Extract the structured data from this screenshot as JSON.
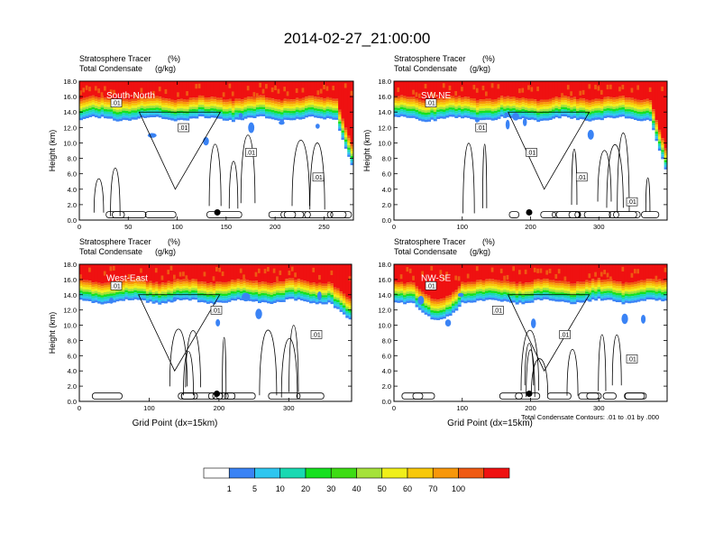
{
  "figure": {
    "title": "2014-02-27_21:00:00",
    "footnote": "Total Condensate Contours: .01 to .01 by .000"
  },
  "colorbar": {
    "colors": [
      "#ffffff",
      "#3a83f5",
      "#2ec6f0",
      "#19d9b2",
      "#16e020",
      "#3ddc14",
      "#a5e23a",
      "#f0ef1a",
      "#f8c80a",
      "#f8970a",
      "#ef5a12",
      "#ef1111"
    ],
    "labels": [
      "1",
      "5",
      "10",
      "20",
      "30",
      "40",
      "50",
      "60",
      "70",
      "100"
    ]
  },
  "chart_data": [
    {
      "type": "heatmap",
      "panel": "South-North",
      "annotation_left": "Stratosphere Tracer",
      "annotation_left_unit": "(%)",
      "annotation_left2": "Total Condensate",
      "annotation_left2_unit": "(g/kg)",
      "ylabel": "Height (km)",
      "xlabel": "",
      "xlim": [
        0,
        280
      ],
      "ylim": [
        0,
        18
      ],
      "xticks": [
        "0",
        "50",
        "100",
        "150",
        "200",
        "250"
      ],
      "yticks": [
        "0.0",
        "2.0",
        "4.0",
        "6.0",
        "8.0",
        "10.0",
        "12.0",
        "14.0",
        "16.0",
        "18.0"
      ],
      "marker_x": 141,
      "marker_y": 1.0,
      "contour_labels": [
        ".01",
        ".01",
        ".01",
        ".01"
      ]
    },
    {
      "type": "heatmap",
      "panel": "SW-NE",
      "annotation_left": "Stratosphere Tracer",
      "annotation_left_unit": "(%)",
      "annotation_left2": "Total Condensate",
      "annotation_left2_unit": "(g/kg)",
      "ylabel": "Height (km)",
      "xlabel": "",
      "xlim": [
        0,
        400
      ],
      "ylim": [
        0,
        18
      ],
      "xticks": [
        "0",
        "100",
        "200",
        "300"
      ],
      "yticks": [
        "0.0",
        "2.0",
        "4.0",
        "6.0",
        "8.0",
        "10.0",
        "12.0",
        "14.0",
        "16.0",
        "18.0"
      ],
      "marker_x": 198,
      "marker_y": 1.0,
      "contour_labels": [
        ".01",
        ".01",
        ".01",
        ".01",
        ".01"
      ]
    },
    {
      "type": "heatmap",
      "panel": "West-East",
      "annotation_left": "Stratosphere Tracer",
      "annotation_left_unit": "(%)",
      "annotation_left2": "Total Condensate",
      "annotation_left2_unit": "(g/kg)",
      "ylabel": "Height (km)",
      "xlabel": "Grid Point (dx=15km)",
      "xlim": [
        0,
        390
      ],
      "ylim": [
        0,
        18
      ],
      "xticks": [
        "0",
        "100",
        "200",
        "300"
      ],
      "yticks": [
        "0.0",
        "2.0",
        "4.0",
        "6.0",
        "8.0",
        "10.0",
        "12.0",
        "14.0",
        "16.0",
        "18.0"
      ],
      "marker_x": 197,
      "marker_y": 1.0,
      "contour_labels": [
        ".01",
        ".01",
        ".01"
      ]
    },
    {
      "type": "heatmap",
      "panel": "NW-SE",
      "annotation_left": "Stratosphere Tracer",
      "annotation_left_unit": "(%)",
      "annotation_left2": "Total Condensate",
      "annotation_left2_unit": "(g/kg)",
      "ylabel": "",
      "xlabel": "Grid Point (dx=15km)",
      "xlim": [
        0,
        400
      ],
      "ylim": [
        0,
        18
      ],
      "xticks": [
        "0",
        "100",
        "200",
        "300"
      ],
      "yticks": [
        "0.0",
        "2.0",
        "4.0",
        "6.0",
        "8.0",
        "10.0",
        "12.0",
        "14.0",
        "16.0",
        "18.0"
      ],
      "marker_x": 198,
      "marker_y": 1.0,
      "contour_labels": [
        ".01",
        ".01",
        ".01",
        ".01"
      ]
    }
  ]
}
